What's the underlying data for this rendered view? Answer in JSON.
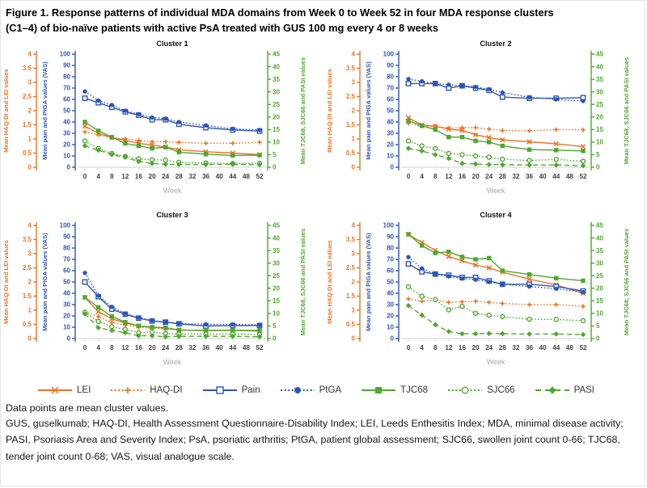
{
  "figure": {
    "title_line1": "Figure 1.  Response patterns of individual MDA domains from Week 0 to Week 52 in four MDA response clusters",
    "title_line2": "(C1–4) of bio-naïve patients with active PsA treated with GUS 100 mg every 4 or 8 weeks"
  },
  "colors": {
    "orange": "#ED7224",
    "blue": "#2E55B8",
    "green": "#4EA72E",
    "x_axis_line": "#D9D9D9",
    "x_tick_text": "#3F3F3F",
    "week_label": "#A8A8A8"
  },
  "legend": [
    {
      "id": "LEI",
      "label": "LEI",
      "color": "orange",
      "line": "solid",
      "marker": "x"
    },
    {
      "id": "HAQ-DI",
      "label": "HAQ-DI",
      "color": "orange",
      "line": "dotted",
      "marker": "plus"
    },
    {
      "id": "Pain",
      "label": "Pain",
      "color": "blue",
      "line": "solid",
      "marker": "square-open"
    },
    {
      "id": "PtGA",
      "label": "PtGA",
      "color": "blue",
      "line": "dotted",
      "marker": "circle-filled"
    },
    {
      "id": "TJC68",
      "label": "TJC68",
      "color": "green",
      "line": "solid",
      "marker": "square-filled"
    },
    {
      "id": "SJC66",
      "label": "SJC66",
      "color": "green",
      "line": "dotted",
      "marker": "circle-open"
    },
    {
      "id": "PASI",
      "label": "PASI",
      "color": "green",
      "line": "dashed",
      "marker": "diamond-filled"
    }
  ],
  "notes": {
    "data_points": "Data points are mean cluster values.",
    "abbreviations": "GUS, guselkumab; HAQ-DI, Health Assessment Questionnaire-Disability Index; LEI, Leeds Enthesitis Index; MDA, minimal disease activity; PASI, Psoriasis Area and Severity Index; PsA, psoriatic arthritis; PtGA, patient global assessment; SJC66, swollen joint count 0-66; TJC68, tender joint count 0-68; VAS, visual analogue scale."
  },
  "chart_data": {
    "type": "line",
    "x_label": "Week",
    "x_weeks": [
      0,
      4,
      8,
      12,
      16,
      20,
      24,
      28,
      36,
      44,
      52
    ],
    "x_ticks": [
      0,
      4,
      8,
      12,
      16,
      20,
      24,
      28,
      32,
      36,
      40,
      44,
      48,
      52
    ],
    "axes": {
      "orange": {
        "label": "Mean HAQ-DI and LEI values",
        "min": 0,
        "max": 4,
        "step": 0.5
      },
      "blue": {
        "label": "Mean pain and PtGA values (VAS)",
        "min": 0,
        "max": 100,
        "step": 10
      },
      "green": {
        "label": "Mean TJC68, SJC66 and PASI values",
        "min": 0,
        "max": 45,
        "step": 5
      }
    },
    "series_meta": [
      {
        "id": "LEI",
        "axis": "orange",
        "style": "solid",
        "marker": "x"
      },
      {
        "id": "HAQ-DI",
        "axis": "orange",
        "style": "dotted",
        "marker": "plus"
      },
      {
        "id": "Pain",
        "axis": "blue",
        "style": "solid",
        "marker": "square-open"
      },
      {
        "id": "PtGA",
        "axis": "blue",
        "style": "dotted",
        "marker": "circle-filled"
      },
      {
        "id": "TJC68",
        "axis": "green",
        "style": "solid",
        "marker": "square-filled"
      },
      {
        "id": "SJC66",
        "axis": "green",
        "style": "dotted",
        "marker": "circle-open"
      },
      {
        "id": "PASI",
        "axis": "green",
        "style": "dashed",
        "marker": "diamond-filled"
      }
    ],
    "clusters": [
      {
        "title": "Cluster 1",
        "series": {
          "LEI": [
            1.45,
            1.2,
            1.05,
            0.95,
            0.85,
            0.78,
            0.72,
            0.62,
            0.55,
            0.5,
            0.45
          ],
          "HAQ-DI": [
            1.25,
            1.15,
            1.05,
            1.0,
            0.95,
            0.9,
            0.9,
            0.88,
            0.85,
            0.85,
            0.88
          ],
          "Pain": [
            61,
            57,
            53,
            49,
            46,
            42,
            42,
            38,
            35,
            33,
            32
          ],
          "PtGA": [
            67,
            59,
            55,
            50,
            47,
            44,
            43,
            40,
            37,
            34,
            33
          ],
          "TJC68": [
            18,
            14.5,
            12,
            9.5,
            8.5,
            7.5,
            8,
            6,
            5.2,
            4.7,
            4.8
          ],
          "SJC66": [
            10.5,
            7.5,
            5.5,
            4.3,
            3.3,
            3.0,
            2.8,
            2.0,
            1.7,
            1.5,
            1.6
          ],
          "PASI": [
            8.5,
            6.8,
            5.0,
            4.0,
            2.3,
            1.5,
            1.2,
            1.1,
            1.1,
            1.2,
            1.0
          ]
        }
      },
      {
        "title": "Cluster 2",
        "series": {
          "LEI": [
            1.75,
            1.5,
            1.45,
            1.35,
            1.3,
            1.15,
            1.05,
            0.97,
            0.9,
            0.83,
            0.73
          ],
          "HAQ-DI": [
            1.55,
            1.45,
            1.45,
            1.38,
            1.4,
            1.4,
            1.35,
            1.3,
            1.29,
            1.33,
            1.32
          ],
          "Pain": [
            74,
            74,
            74,
            70,
            72,
            70,
            68,
            62,
            61,
            61,
            61.5
          ],
          "PtGA": [
            78,
            76,
            74,
            73,
            72,
            71,
            69,
            66,
            62,
            60,
            58.5
          ],
          "TJC68": [
            18.5,
            16.5,
            15,
            12,
            12,
            10.5,
            10,
            8.5,
            7,
            6.8,
            6.5
          ],
          "SJC66": [
            10.5,
            8.5,
            7.5,
            5.5,
            5,
            4.5,
            4,
            3.2,
            2.7,
            3.1,
            2.4
          ],
          "PASI": [
            7.5,
            6.5,
            5,
            3.5,
            1.5,
            1.3,
            1.1,
            1.0,
            0.9,
            0.9,
            0.6
          ]
        }
      },
      {
        "title": "Cluster 3",
        "series": {
          "LEI": [
            1.45,
            0.95,
            0.7,
            0.55,
            0.45,
            0.4,
            0.37,
            0.3,
            0.28,
            0.3,
            0.26
          ],
          "HAQ-DI": [
            0.95,
            0.78,
            0.56,
            0.48,
            0.4,
            0.36,
            0.34,
            0.3,
            0.28,
            0.3,
            0.28
          ],
          "Pain": [
            50,
            37,
            26,
            21.5,
            18,
            15.5,
            14.5,
            13,
            11,
            11.5,
            11.5
          ],
          "PtGA": [
            58,
            38,
            28,
            22,
            18.5,
            16,
            14.5,
            13.5,
            12.5,
            12.5,
            12
          ],
          "TJC68": [
            16.4,
            12.4,
            8.8,
            6.5,
            5,
            4.5,
            4.3,
            3.4,
            3.2,
            3.2,
            3.2
          ],
          "SJC66": [
            10.4,
            6.8,
            4.7,
            3.6,
            2.3,
            2.5,
            2.0,
            1.8,
            1.8,
            1.8,
            1.6
          ],
          "PASI": [
            9.8,
            4.3,
            3.2,
            2.3,
            1.1,
            1.1,
            0.7,
            0.9,
            0.9,
            0.9,
            0.7
          ]
        }
      },
      {
        "title": "Cluster 4",
        "series": {
          "LEI": [
            3.68,
            3.4,
            3.12,
            2.9,
            2.75,
            2.6,
            2.5,
            2.35,
            2.1,
            1.9,
            1.6
          ],
          "HAQ-DI": [
            1.4,
            1.32,
            1.36,
            1.28,
            1.3,
            1.32,
            1.28,
            1.24,
            1.2,
            1.2,
            1.14
          ],
          "Pain": [
            66,
            59,
            57,
            56,
            54,
            54,
            51,
            48,
            48,
            46,
            42
          ],
          "PtGA": [
            72,
            62,
            57,
            55,
            53,
            52,
            50,
            48,
            46,
            44,
            41
          ],
          "TJC68": [
            41.5,
            37,
            34,
            34.5,
            32.5,
            31.5,
            32,
            27,
            25.5,
            24,
            23
          ],
          "SJC66": [
            20.6,
            16.8,
            15.5,
            11.4,
            12.8,
            10,
            9.3,
            8.7,
            7.7,
            7.6,
            7.1
          ],
          "PASI": [
            13.1,
            9.3,
            5.5,
            2.8,
            1.9,
            1.9,
            2.0,
            1.9,
            1.8,
            1.8,
            1.6
          ]
        }
      }
    ]
  }
}
